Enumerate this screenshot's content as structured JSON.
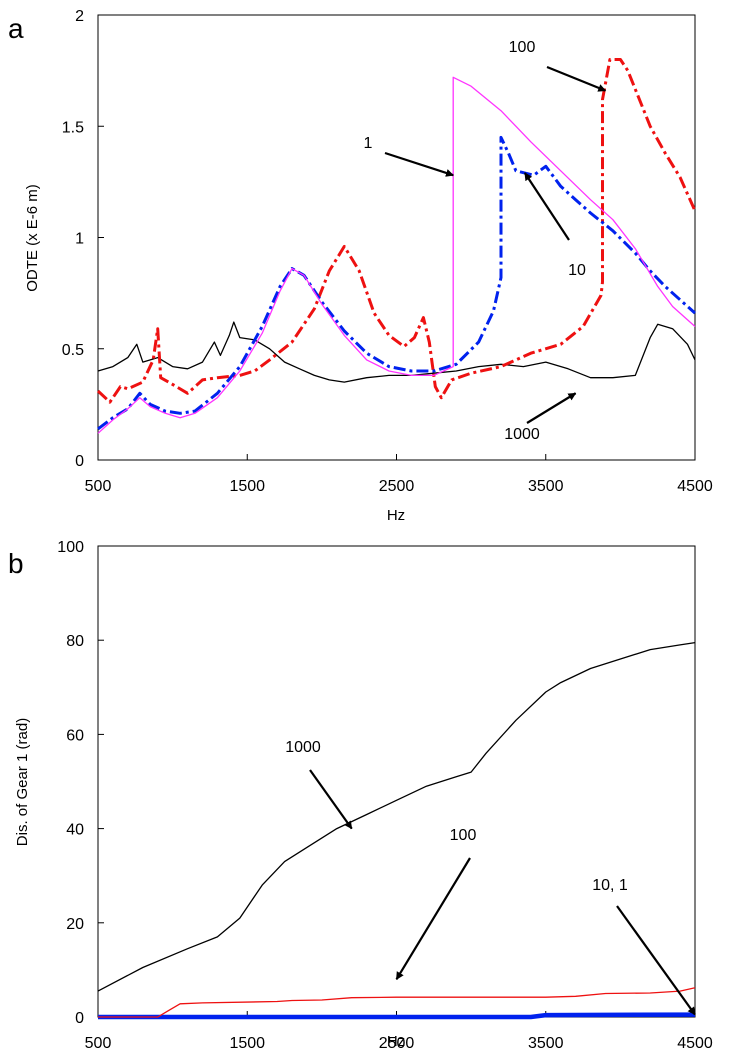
{
  "chart_data": [
    {
      "panel_label": "a",
      "type": "line",
      "xlabel": "Hz",
      "ylabel": "ODTE (x E-6 m)",
      "xlim": [
        500,
        4500
      ],
      "ylim": [
        0,
        2
      ],
      "x_ticks": [
        "500",
        "1500",
        "2500",
        "3500",
        "4500"
      ],
      "y_ticks": [
        "0",
        "0.5",
        "1",
        "1.5",
        "2"
      ],
      "grid": false,
      "legend": "none",
      "series": [
        {
          "name": "1",
          "color": "#ff33ff",
          "style": "solid",
          "points": [
            [
              500,
              0.12
            ],
            [
              600,
              0.18
            ],
            [
              700,
              0.23
            ],
            [
              780,
              0.28
            ],
            [
              850,
              0.24
            ],
            [
              950,
              0.21
            ],
            [
              1050,
              0.19
            ],
            [
              1150,
              0.21
            ],
            [
              1300,
              0.28
            ],
            [
              1450,
              0.4
            ],
            [
              1600,
              0.57
            ],
            [
              1720,
              0.76
            ],
            [
              1800,
              0.86
            ],
            [
              1880,
              0.83
            ],
            [
              2000,
              0.7
            ],
            [
              2150,
              0.56
            ],
            [
              2300,
              0.45
            ],
            [
              2450,
              0.4
            ],
            [
              2600,
              0.38
            ],
            [
              2750,
              0.38
            ],
            [
              2880,
              0.42
            ],
            [
              2880,
              1.72
            ],
            [
              3000,
              1.68
            ],
            [
              3200,
              1.57
            ],
            [
              3400,
              1.43
            ],
            [
              3600,
              1.3
            ],
            [
              3800,
              1.17
            ],
            [
              3950,
              1.08
            ],
            [
              4100,
              0.95
            ],
            [
              4250,
              0.78
            ],
            [
              4350,
              0.69
            ],
            [
              4500,
              0.6
            ]
          ]
        },
        {
          "name": "10",
          "color": "#0022ee",
          "style": "dashdot",
          "points": [
            [
              500,
              0.14
            ],
            [
              600,
              0.19
            ],
            [
              700,
              0.23
            ],
            [
              780,
              0.3
            ],
            [
              850,
              0.25
            ],
            [
              950,
              0.22
            ],
            [
              1050,
              0.21
            ],
            [
              1150,
              0.22
            ],
            [
              1300,
              0.3
            ],
            [
              1450,
              0.42
            ],
            [
              1600,
              0.6
            ],
            [
              1720,
              0.78
            ],
            [
              1800,
              0.86
            ],
            [
              1880,
              0.83
            ],
            [
              2000,
              0.71
            ],
            [
              2150,
              0.58
            ],
            [
              2300,
              0.48
            ],
            [
              2450,
              0.42
            ],
            [
              2600,
              0.4
            ],
            [
              2750,
              0.4
            ],
            [
              2900,
              0.43
            ],
            [
              3050,
              0.53
            ],
            [
              3150,
              0.67
            ],
            [
              3200,
              0.82
            ],
            [
              3200,
              1.45
            ],
            [
              3250,
              1.38
            ],
            [
              3300,
              1.3
            ],
            [
              3420,
              1.28
            ],
            [
              3500,
              1.32
            ],
            [
              3600,
              1.23
            ],
            [
              3700,
              1.17
            ],
            [
              3800,
              1.11
            ],
            [
              3950,
              1.03
            ],
            [
              4100,
              0.93
            ],
            [
              4200,
              0.85
            ],
            [
              4300,
              0.78
            ],
            [
              4400,
              0.72
            ],
            [
              4500,
              0.66
            ]
          ]
        },
        {
          "name": "100",
          "color": "#ee1111",
          "style": "dashdot",
          "points": [
            [
              500,
              0.31
            ],
            [
              580,
              0.26
            ],
            [
              650,
              0.33
            ],
            [
              700,
              0.32
            ],
            [
              800,
              0.35
            ],
            [
              870,
              0.45
            ],
            [
              900,
              0.59
            ],
            [
              920,
              0.37
            ],
            [
              1000,
              0.34
            ],
            [
              1100,
              0.3
            ],
            [
              1200,
              0.36
            ],
            [
              1300,
              0.37
            ],
            [
              1450,
              0.38
            ],
            [
              1550,
              0.4
            ],
            [
              1650,
              0.45
            ],
            [
              1800,
              0.53
            ],
            [
              1950,
              0.68
            ],
            [
              2050,
              0.85
            ],
            [
              2150,
              0.96
            ],
            [
              2250,
              0.85
            ],
            [
              2350,
              0.66
            ],
            [
              2450,
              0.56
            ],
            [
              2550,
              0.51
            ],
            [
              2620,
              0.55
            ],
            [
              2680,
              0.64
            ],
            [
              2720,
              0.53
            ],
            [
              2760,
              0.33
            ],
            [
              2800,
              0.28
            ],
            [
              2870,
              0.36
            ],
            [
              3000,
              0.39
            ],
            [
              3200,
              0.42
            ],
            [
              3400,
              0.48
            ],
            [
              3600,
              0.52
            ],
            [
              3750,
              0.6
            ],
            [
              3870,
              0.74
            ],
            [
              3880,
              0.8
            ],
            [
              3880,
              1.62
            ],
            [
              3930,
              1.8
            ],
            [
              4000,
              1.8
            ],
            [
              4050,
              1.75
            ],
            [
              4200,
              1.5
            ],
            [
              4300,
              1.38
            ],
            [
              4400,
              1.27
            ],
            [
              4500,
              1.12
            ]
          ]
        },
        {
          "name": "1000",
          "color": "#000000",
          "style": "solid",
          "points": [
            [
              500,
              0.4
            ],
            [
              600,
              0.42
            ],
            [
              700,
              0.46
            ],
            [
              760,
              0.52
            ],
            [
              800,
              0.44
            ],
            [
              900,
              0.46
            ],
            [
              1000,
              0.42
            ],
            [
              1100,
              0.41
            ],
            [
              1200,
              0.44
            ],
            [
              1280,
              0.53
            ],
            [
              1320,
              0.47
            ],
            [
              1380,
              0.56
            ],
            [
              1410,
              0.62
            ],
            [
              1450,
              0.55
            ],
            [
              1550,
              0.54
            ],
            [
              1650,
              0.5
            ],
            [
              1750,
              0.44
            ],
            [
              1850,
              0.41
            ],
            [
              1950,
              0.38
            ],
            [
              2050,
              0.36
            ],
            [
              2150,
              0.35
            ],
            [
              2300,
              0.37
            ],
            [
              2450,
              0.38
            ],
            [
              2600,
              0.38
            ],
            [
              2750,
              0.39
            ],
            [
              2900,
              0.4
            ],
            [
              3050,
              0.42
            ],
            [
              3200,
              0.43
            ],
            [
              3350,
              0.42
            ],
            [
              3500,
              0.44
            ],
            [
              3650,
              0.41
            ],
            [
              3800,
              0.37
            ],
            [
              3950,
              0.37
            ],
            [
              4100,
              0.38
            ],
            [
              4200,
              0.55
            ],
            [
              4250,
              0.61
            ],
            [
              4350,
              0.59
            ],
            [
              4450,
              0.52
            ],
            [
              4500,
              0.45
            ]
          ]
        }
      ],
      "annotations": [
        {
          "text": "1",
          "target": [
            2880,
            1.28
          ]
        },
        {
          "text": "10",
          "target": [
            3360,
            1.29
          ]
        },
        {
          "text": "100",
          "target": [
            3900,
            1.66
          ]
        },
        {
          "text": "1000",
          "target": [
            3700,
            0.3
          ]
        }
      ]
    },
    {
      "panel_label": "b",
      "type": "line",
      "xlabel": "Hz",
      "ylabel": "Dis. of Gear 1 (rad)",
      "xlim": [
        500,
        4500
      ],
      "ylim": [
        0,
        100
      ],
      "x_ticks": [
        "500",
        "1500",
        "2500",
        "3500",
        "4500"
      ],
      "y_ticks": [
        "0",
        "20",
        "40",
        "60",
        "80",
        "100"
      ],
      "grid": false,
      "legend": "none",
      "series": [
        {
          "name": "1000",
          "color": "#000000",
          "style": "solid",
          "points": [
            [
              500,
              5.5
            ],
            [
              800,
              10.5
            ],
            [
              1100,
              14.5
            ],
            [
              1300,
              17
            ],
            [
              1450,
              21
            ],
            [
              1600,
              28
            ],
            [
              1750,
              33
            ],
            [
              1900,
              36
            ],
            [
              2100,
              40
            ],
            [
              2300,
              43
            ],
            [
              2500,
              46
            ],
            [
              2700,
              49
            ],
            [
              2900,
              51
            ],
            [
              3000,
              52
            ],
            [
              3100,
              56
            ],
            [
              3300,
              63
            ],
            [
              3500,
              69
            ],
            [
              3600,
              71
            ],
            [
              3800,
              74
            ],
            [
              4000,
              76
            ],
            [
              4200,
              78
            ],
            [
              4400,
              79
            ],
            [
              4500,
              79.5
            ]
          ]
        },
        {
          "name": "100",
          "color": "#ee1111",
          "style": "solid",
          "points": [
            [
              500,
              0
            ],
            [
              900,
              0
            ],
            [
              980,
              1.5
            ],
            [
              1050,
              2.8
            ],
            [
              1200,
              3
            ],
            [
              1700,
              3.3
            ],
            [
              1800,
              3.5
            ],
            [
              2000,
              3.6
            ],
            [
              2200,
              4.1
            ],
            [
              2500,
              4.2
            ],
            [
              3000,
              4.2
            ],
            [
              3500,
              4.2
            ],
            [
              3700,
              4.4
            ],
            [
              3900,
              5.0
            ],
            [
              4200,
              5.1
            ],
            [
              4400,
              5.5
            ],
            [
              4500,
              6.2
            ]
          ]
        },
        {
          "name": "10, 1",
          "color": "#0022ee",
          "style": "solid-thick",
          "points": [
            [
              500,
              0
            ],
            [
              3400,
              0
            ],
            [
              3500,
              0.4
            ],
            [
              4500,
              0.5
            ]
          ]
        }
      ],
      "annotations": [
        {
          "text": "1000",
          "target": [
            2200,
            40
          ]
        },
        {
          "text": "100",
          "target": [
            2500,
            8
          ]
        },
        {
          "text": "10, 1",
          "target": [
            4500,
            0.5
          ]
        }
      ]
    }
  ]
}
